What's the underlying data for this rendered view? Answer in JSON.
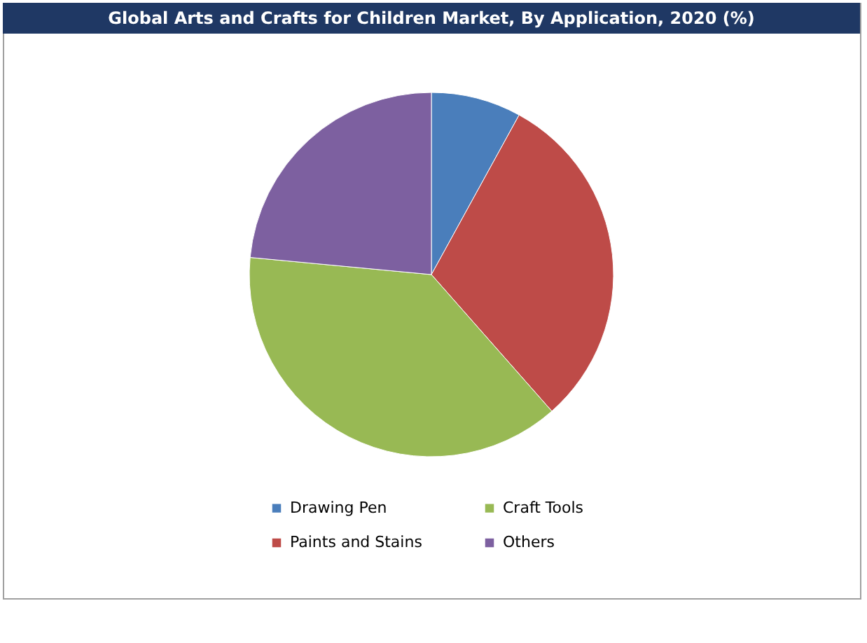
{
  "chart_data": {
    "type": "pie",
    "title": "Global Arts and Crafts for Children Market, By Application, 2020 (%)",
    "categories": [
      "Drawing Pen",
      "Paints and Stains",
      "Craft Tools",
      "Others"
    ],
    "values": [
      8,
      30.5,
      38,
      23.5
    ],
    "colors": [
      "#4a7ebb",
      "#be4b48",
      "#98b954",
      "#7d60a0"
    ],
    "legend": "bottom"
  }
}
